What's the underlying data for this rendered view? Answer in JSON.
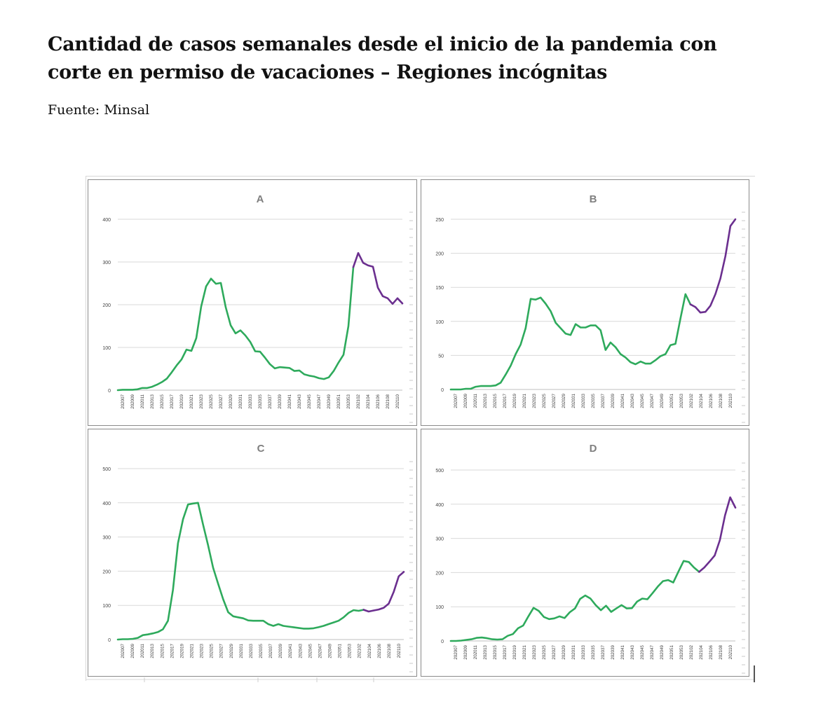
{
  "heading": {
    "title": "Cantidad de casos semanales desde el inicio de la pandemia con corte en permiso de vacaciones – Regiones incógnitas",
    "source": "Fuente: Minsal"
  },
  "colors": {
    "pre_cut": "#2eaa5c",
    "post_cut": "#6b2f8f",
    "grid": "#d9d9d9",
    "axis": "#bfbfbf",
    "label": "#7f7f7f"
  },
  "x_tick_labels": [
    "202007",
    "202009",
    "202011",
    "202013",
    "202015",
    "202017",
    "202019",
    "202021",
    "202023",
    "202025",
    "202027",
    "202029",
    "202031",
    "202033",
    "202035",
    "202037",
    "202039",
    "202041",
    "202043",
    "202045",
    "202047",
    "202049",
    "202051",
    "202053",
    "202102",
    "202104",
    "202106",
    "202108",
    "202110"
  ],
  "chart_data": [
    {
      "type": "line",
      "title": "A",
      "ylim": [
        0,
        400
      ],
      "yticks": [
        0,
        100,
        200,
        300,
        400
      ],
      "grid": true,
      "cut_index": 48,
      "values": [
        0,
        1,
        1,
        1,
        2,
        5,
        5,
        8,
        13,
        19,
        27,
        42,
        58,
        72,
        95,
        92,
        122,
        196,
        243,
        261,
        249,
        251,
        194,
        152,
        133,
        140,
        128,
        113,
        91,
        90,
        76,
        61,
        51,
        54,
        53,
        52,
        45,
        46,
        37,
        34,
        32,
        28,
        26,
        30,
        45,
        65,
        83,
        150,
        288,
        321,
        298,
        292,
        289,
        240,
        220,
        215,
        202,
        215,
        203
      ],
      "series_colors": [
        "pre_cut",
        "post_cut"
      ]
    },
    {
      "type": "line",
      "title": "B",
      "ylim": [
        0,
        250
      ],
      "yticks": [
        0,
        50,
        100,
        150,
        200,
        250
      ],
      "grid": true,
      "cut_index": 48,
      "values": [
        0,
        0,
        0,
        1,
        1,
        4,
        5,
        5,
        5,
        6,
        10,
        22,
        35,
        52,
        66,
        90,
        133,
        132,
        135,
        126,
        115,
        98,
        90,
        82,
        80,
        96,
        91,
        91,
        94,
        94,
        87,
        58,
        69,
        62,
        52,
        47,
        40,
        37,
        41,
        38,
        38,
        43,
        49,
        52,
        65,
        67,
        104,
        140,
        125,
        121,
        113,
        114,
        123,
        140,
        163,
        196,
        240,
        250
      ],
      "series_colors": [
        "pre_cut",
        "post_cut"
      ]
    },
    {
      "type": "line",
      "title": "C",
      "ylim": [
        0,
        500
      ],
      "yticks": [
        0,
        100,
        200,
        300,
        400,
        500
      ],
      "grid": true,
      "cut_index": 49,
      "values": [
        0,
        1,
        1,
        2,
        5,
        13,
        15,
        18,
        22,
        30,
        55,
        145,
        282,
        352,
        395,
        398,
        400,
        336,
        276,
        210,
        163,
        118,
        80,
        68,
        65,
        62,
        56,
        55,
        55,
        55,
        45,
        40,
        45,
        40,
        38,
        36,
        34,
        32,
        32,
        33,
        36,
        40,
        45,
        50,
        55,
        65,
        78,
        86,
        84,
        87,
        82,
        85,
        88,
        93,
        105,
        140,
        185,
        198
      ],
      "series_colors": [
        "pre_cut",
        "post_cut"
      ]
    },
    {
      "type": "line",
      "title": "D",
      "ylim": [
        0,
        500
      ],
      "yticks": [
        0,
        100,
        200,
        300,
        400,
        500
      ],
      "grid": true,
      "cut_index": 48,
      "values": [
        0,
        0,
        1,
        3,
        5,
        9,
        10,
        8,
        5,
        4,
        5,
        15,
        20,
        37,
        45,
        72,
        97,
        88,
        70,
        64,
        66,
        72,
        67,
        84,
        95,
        123,
        133,
        124,
        105,
        90,
        103,
        85,
        95,
        105,
        95,
        96,
        115,
        124,
        122,
        140,
        159,
        175,
        178,
        171,
        203,
        234,
        231,
        215,
        202,
        215,
        232,
        250,
        295,
        367,
        420,
        390
      ],
      "series_colors": [
        "pre_cut",
        "post_cut"
      ]
    }
  ]
}
